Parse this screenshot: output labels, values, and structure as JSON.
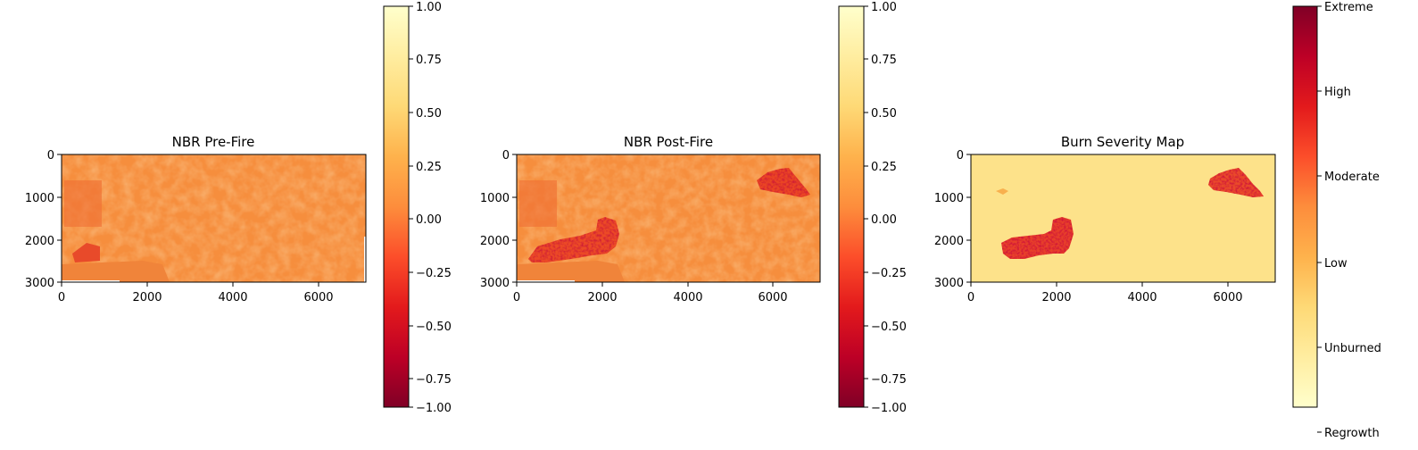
{
  "chart_data": [
    {
      "type": "heatmap",
      "title": "NBR Pre-Fire",
      "xlim": [
        0,
        7100
      ],
      "ylim": [
        3000,
        0
      ],
      "xticks": [
        0,
        2000,
        4000,
        6000
      ],
      "xtick_labels": [
        "0",
        "2000",
        "4000",
        "6000"
      ],
      "yticks": [
        0,
        1000,
        2000,
        3000
      ],
      "ytick_labels": [
        "0",
        "1000",
        "2000",
        "3000"
      ],
      "colormap": "YlOrRd_r",
      "colorbar": {
        "vmin": -1.0,
        "vmax": 1.0,
        "ticks": [
          1.0,
          0.75,
          0.5,
          0.25,
          0.0,
          -0.25,
          -0.5,
          -0.75,
          -1.0
        ],
        "tick_labels": [
          "1.00",
          "0.75",
          "0.50",
          "0.25",
          "0.00",
          "−0.25",
          "−0.50",
          "−0.75",
          "−1.00"
        ]
      },
      "dominant_value": 0.14,
      "burn_patches": []
    },
    {
      "type": "heatmap",
      "title": "NBR Post-Fire",
      "xlim": [
        0,
        7100
      ],
      "ylim": [
        3000,
        0
      ],
      "xticks": [
        0,
        2000,
        4000,
        6000
      ],
      "xtick_labels": [
        "0",
        "2000",
        "4000",
        "6000"
      ],
      "yticks": [
        0,
        1000,
        2000,
        3000
      ],
      "ytick_labels": [
        "0",
        "1000",
        "2000",
        "3000"
      ],
      "colormap": "YlOrRd_r",
      "colorbar": {
        "vmin": -1.0,
        "vmax": 1.0,
        "ticks": [
          1.0,
          0.75,
          0.5,
          0.25,
          0.0,
          -0.25,
          -0.5,
          -0.75,
          -1.0
        ],
        "tick_labels": [
          "1.00",
          "0.75",
          "0.50",
          "0.25",
          "0.00",
          "−0.25",
          "−0.50",
          "−0.75",
          "−1.00"
        ]
      },
      "dominant_value": 0.13,
      "burn_patches": [
        "west fire scar (x ≈ 600–2400, y ≈ 1500–2500)",
        "northeast fire scar (x ≈ 5600–6900, y ≈ 350–1000)"
      ]
    },
    {
      "type": "heatmap",
      "title": "Burn Severity Map",
      "xlim": [
        0,
        7100
      ],
      "ylim": [
        3000,
        0
      ],
      "xticks": [
        0,
        2000,
        4000,
        6000
      ],
      "xtick_labels": [
        "0",
        "2000",
        "4000",
        "6000"
      ],
      "yticks": [
        0,
        1000,
        2000,
        3000
      ],
      "ytick_labels": [
        "0",
        "1000",
        "2000",
        "3000"
      ],
      "colormap": "YlOrRd",
      "colorbar": {
        "categories": [
          "Extreme",
          "High",
          "Moderate",
          "Low",
          "Unburned",
          "Regrowth"
        ]
      },
      "dominant_class": "Unburned",
      "burn_patches": [
        "west burn area (Moderate–High)",
        "northeast burn area (Moderate–High)"
      ]
    }
  ]
}
